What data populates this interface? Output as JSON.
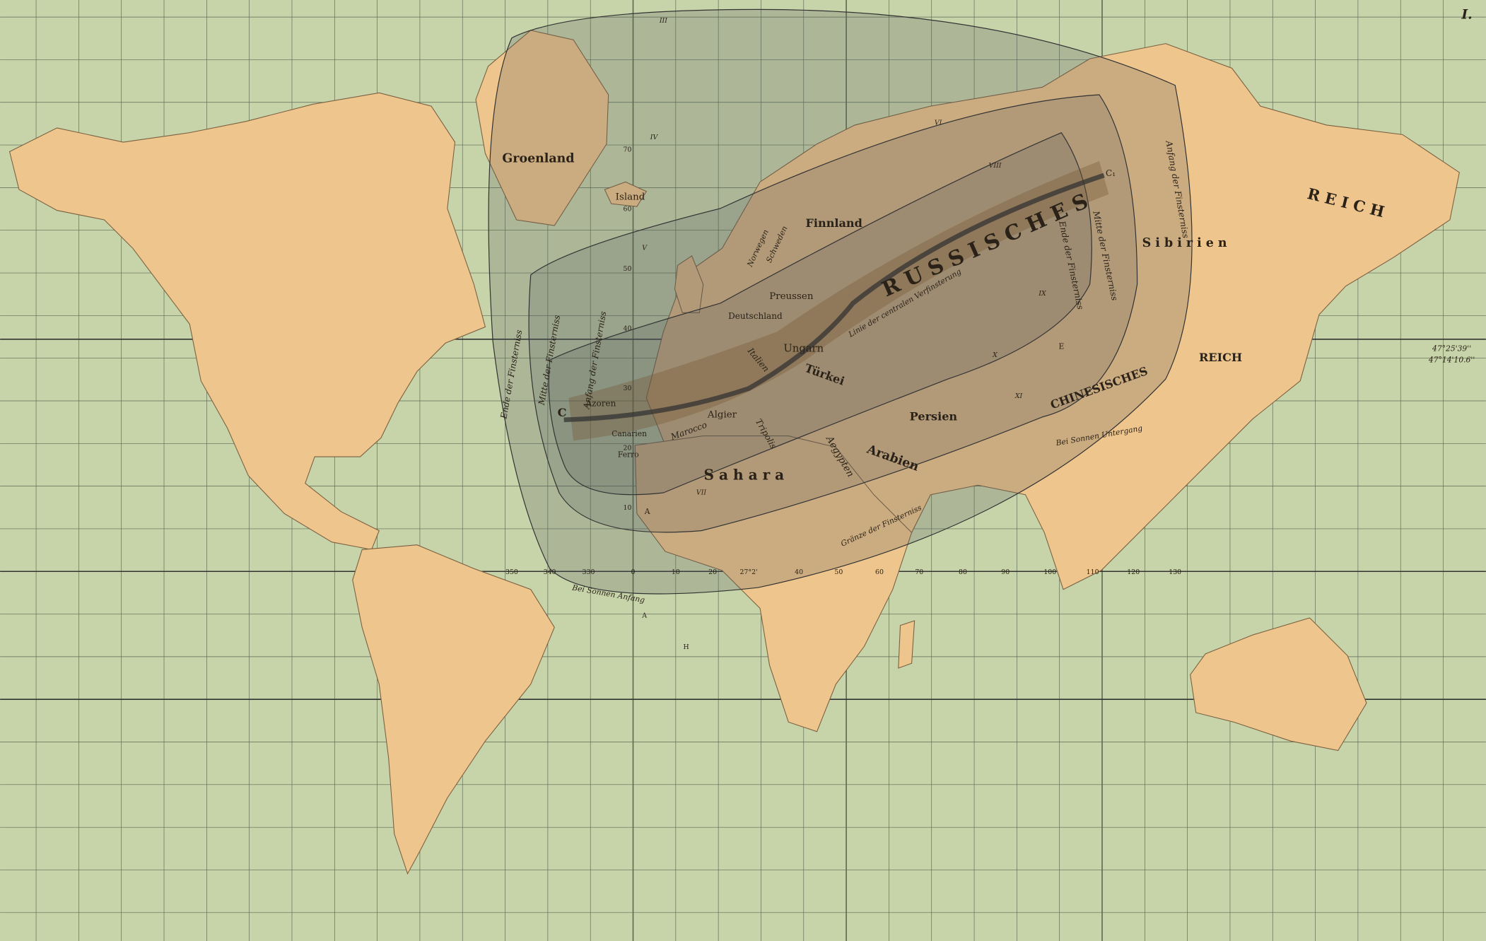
{
  "plate": "I.",
  "regions": {
    "groenland": "Groenland",
    "island": "Island",
    "finnland": "Finnland",
    "norwegen": "Norwegen",
    "schweden": "Schweden",
    "preussen": "Preussen",
    "deutschland": "Deutschland",
    "ungarn": "Ungarn",
    "italien": "Italien",
    "tuerkei": "Türkei",
    "azoren": "Azoren",
    "canarien": "Canarien",
    "ferro": "Ferro",
    "marocco": "Marocco",
    "algier": "Algier",
    "tripolis": "Tripolis",
    "sahara": "S a h a r a",
    "aegypten": "Aegypten",
    "arabien": "Arabien",
    "persien": "Persien",
    "russisches": "R U S S I S C H E S",
    "reich_north": "R E I C H",
    "sibirien": "S i b i r i e n",
    "chinesisches": "CHINESISCHES",
    "reich_china": "REICH"
  },
  "lines": {
    "ende_left": "Ende der Finsterniss",
    "mitte_left": "Mitte der Finsterniss",
    "anfang_left": "Anfang der Finsterniss",
    "anfang_right": "Anfang der Finsterniss",
    "mitte_right": "Mitte der Finsterniss",
    "ende_right": "Ende der Finsterniss",
    "sonnen_anfang": "Bei Sonnen Anfang",
    "sonnen_untergang": "Bei Sonnen Untergang",
    "graenze": "Gränze der Finsterniss",
    "central": "Linie der centralen Verfinsterung"
  },
  "points": {
    "c": "C",
    "c1": "C₁",
    "a": "A",
    "e": "E",
    "a2": "A",
    "h": "H"
  },
  "coords": [
    "47°25'39''",
    "47°14'10.6''"
  ],
  "longitudes": [
    "350",
    "340",
    "330",
    "0",
    "10",
    "20",
    "27°2'",
    "40",
    "50",
    "60",
    "70",
    "80",
    "90",
    "100",
    "110",
    "120",
    "130"
  ],
  "latitudes": [
    "70",
    "60",
    "50",
    "40",
    "30",
    "20",
    "10"
  ],
  "hours": [
    "III",
    "IV",
    "V",
    "VI",
    "VII",
    "VIII",
    "IX",
    "X",
    "XI"
  ]
}
